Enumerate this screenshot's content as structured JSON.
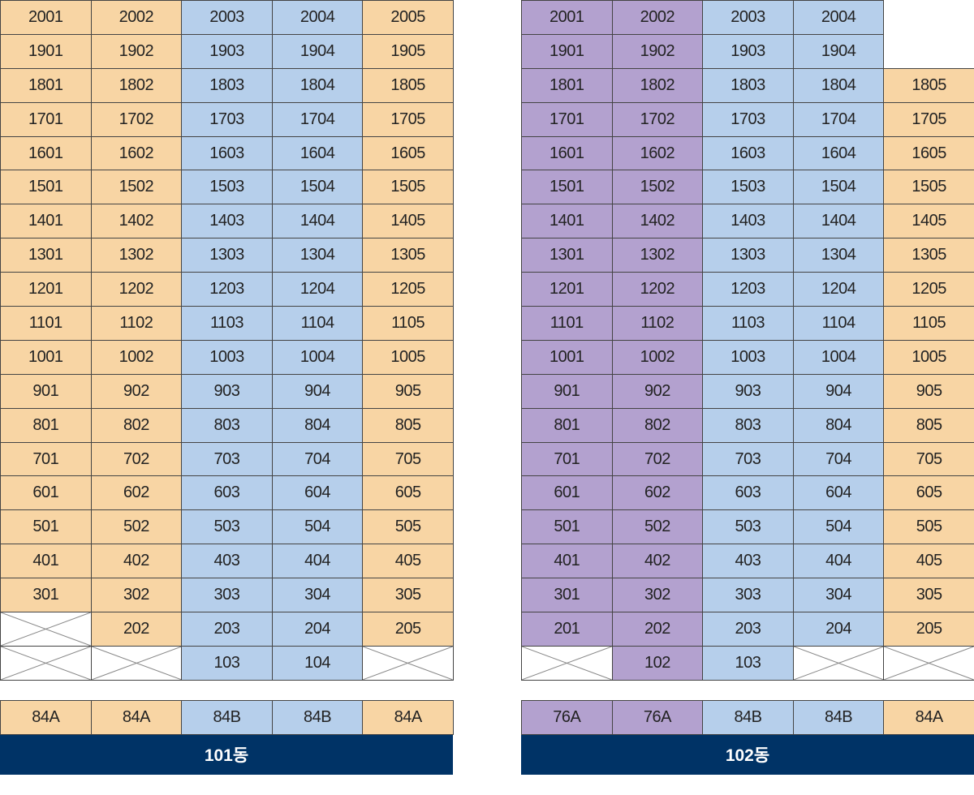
{
  "legend_colors": {
    "A": "#f8d5a4",
    "B": "#b6cfeb",
    "C": "#b3a1cf",
    "label_bg": "#003366"
  },
  "buildings": [
    {
      "name": "101동",
      "rows": [
        [
          [
            "2001",
            "A"
          ],
          [
            "2002",
            "A"
          ],
          [
            "2003",
            "B"
          ],
          [
            "2004",
            "B"
          ],
          [
            "2005",
            "A"
          ]
        ],
        [
          [
            "1901",
            "A"
          ],
          [
            "1902",
            "A"
          ],
          [
            "1903",
            "B"
          ],
          [
            "1904",
            "B"
          ],
          [
            "1905",
            "A"
          ]
        ],
        [
          [
            "1801",
            "A"
          ],
          [
            "1802",
            "A"
          ],
          [
            "1803",
            "B"
          ],
          [
            "1804",
            "B"
          ],
          [
            "1805",
            "A"
          ]
        ],
        [
          [
            "1701",
            "A"
          ],
          [
            "1702",
            "A"
          ],
          [
            "1703",
            "B"
          ],
          [
            "1704",
            "B"
          ],
          [
            "1705",
            "A"
          ]
        ],
        [
          [
            "1601",
            "A"
          ],
          [
            "1602",
            "A"
          ],
          [
            "1603",
            "B"
          ],
          [
            "1604",
            "B"
          ],
          [
            "1605",
            "A"
          ]
        ],
        [
          [
            "1501",
            "A"
          ],
          [
            "1502",
            "A"
          ],
          [
            "1503",
            "B"
          ],
          [
            "1504",
            "B"
          ],
          [
            "1505",
            "A"
          ]
        ],
        [
          [
            "1401",
            "A"
          ],
          [
            "1402",
            "A"
          ],
          [
            "1403",
            "B"
          ],
          [
            "1404",
            "B"
          ],
          [
            "1405",
            "A"
          ]
        ],
        [
          [
            "1301",
            "A"
          ],
          [
            "1302",
            "A"
          ],
          [
            "1303",
            "B"
          ],
          [
            "1304",
            "B"
          ],
          [
            "1305",
            "A"
          ]
        ],
        [
          [
            "1201",
            "A"
          ],
          [
            "1202",
            "A"
          ],
          [
            "1203",
            "B"
          ],
          [
            "1204",
            "B"
          ],
          [
            "1205",
            "A"
          ]
        ],
        [
          [
            "1101",
            "A"
          ],
          [
            "1102",
            "A"
          ],
          [
            "1103",
            "B"
          ],
          [
            "1104",
            "B"
          ],
          [
            "1105",
            "A"
          ]
        ],
        [
          [
            "1001",
            "A"
          ],
          [
            "1002",
            "A"
          ],
          [
            "1003",
            "B"
          ],
          [
            "1004",
            "B"
          ],
          [
            "1005",
            "A"
          ]
        ],
        [
          [
            "901",
            "A"
          ],
          [
            "902",
            "A"
          ],
          [
            "903",
            "B"
          ],
          [
            "904",
            "B"
          ],
          [
            "905",
            "A"
          ]
        ],
        [
          [
            "801",
            "A"
          ],
          [
            "802",
            "A"
          ],
          [
            "803",
            "B"
          ],
          [
            "804",
            "B"
          ],
          [
            "805",
            "A"
          ]
        ],
        [
          [
            "701",
            "A"
          ],
          [
            "702",
            "A"
          ],
          [
            "703",
            "B"
          ],
          [
            "704",
            "B"
          ],
          [
            "705",
            "A"
          ]
        ],
        [
          [
            "601",
            "A"
          ],
          [
            "602",
            "A"
          ],
          [
            "603",
            "B"
          ],
          [
            "604",
            "B"
          ],
          [
            "605",
            "A"
          ]
        ],
        [
          [
            "501",
            "A"
          ],
          [
            "502",
            "A"
          ],
          [
            "503",
            "B"
          ],
          [
            "504",
            "B"
          ],
          [
            "505",
            "A"
          ]
        ],
        [
          [
            "401",
            "A"
          ],
          [
            "402",
            "A"
          ],
          [
            "403",
            "B"
          ],
          [
            "404",
            "B"
          ],
          [
            "405",
            "A"
          ]
        ],
        [
          [
            "301",
            "A"
          ],
          [
            "302",
            "A"
          ],
          [
            "303",
            "B"
          ],
          [
            "304",
            "B"
          ],
          [
            "305",
            "A"
          ]
        ],
        [
          [
            "",
            "X"
          ],
          [
            "202",
            "A"
          ],
          [
            "203",
            "B"
          ],
          [
            "204",
            "B"
          ],
          [
            "205",
            "A"
          ]
        ],
        [
          [
            "",
            "X"
          ],
          [
            "",
            "X"
          ],
          [
            "103",
            "B"
          ],
          [
            "104",
            "B"
          ],
          [
            "",
            "X"
          ]
        ]
      ],
      "types": [
        [
          "84A",
          "A"
        ],
        [
          "84A",
          "A"
        ],
        [
          "84B",
          "B"
        ],
        [
          "84B",
          "B"
        ],
        [
          "84A",
          "A"
        ]
      ]
    },
    {
      "name": "102동",
      "rows": [
        [
          [
            "2001",
            "C"
          ],
          [
            "2002",
            "C"
          ],
          [
            "2003",
            "B"
          ],
          [
            "2004",
            "B"
          ],
          [
            "",
            "E"
          ]
        ],
        [
          [
            "1901",
            "C"
          ],
          [
            "1902",
            "C"
          ],
          [
            "1903",
            "B"
          ],
          [
            "1904",
            "B"
          ],
          [
            "",
            "E"
          ]
        ],
        [
          [
            "1801",
            "C"
          ],
          [
            "1802",
            "C"
          ],
          [
            "1803",
            "B"
          ],
          [
            "1804",
            "B"
          ],
          [
            "1805",
            "A"
          ]
        ],
        [
          [
            "1701",
            "C"
          ],
          [
            "1702",
            "C"
          ],
          [
            "1703",
            "B"
          ],
          [
            "1704",
            "B"
          ],
          [
            "1705",
            "A"
          ]
        ],
        [
          [
            "1601",
            "C"
          ],
          [
            "1602",
            "C"
          ],
          [
            "1603",
            "B"
          ],
          [
            "1604",
            "B"
          ],
          [
            "1605",
            "A"
          ]
        ],
        [
          [
            "1501",
            "C"
          ],
          [
            "1502",
            "C"
          ],
          [
            "1503",
            "B"
          ],
          [
            "1504",
            "B"
          ],
          [
            "1505",
            "A"
          ]
        ],
        [
          [
            "1401",
            "C"
          ],
          [
            "1402",
            "C"
          ],
          [
            "1403",
            "B"
          ],
          [
            "1404",
            "B"
          ],
          [
            "1405",
            "A"
          ]
        ],
        [
          [
            "1301",
            "C"
          ],
          [
            "1302",
            "C"
          ],
          [
            "1303",
            "B"
          ],
          [
            "1304",
            "B"
          ],
          [
            "1305",
            "A"
          ]
        ],
        [
          [
            "1201",
            "C"
          ],
          [
            "1202",
            "C"
          ],
          [
            "1203",
            "B"
          ],
          [
            "1204",
            "B"
          ],
          [
            "1205",
            "A"
          ]
        ],
        [
          [
            "1101",
            "C"
          ],
          [
            "1102",
            "C"
          ],
          [
            "1103",
            "B"
          ],
          [
            "1104",
            "B"
          ],
          [
            "1105",
            "A"
          ]
        ],
        [
          [
            "1001",
            "C"
          ],
          [
            "1002",
            "C"
          ],
          [
            "1003",
            "B"
          ],
          [
            "1004",
            "B"
          ],
          [
            "1005",
            "A"
          ]
        ],
        [
          [
            "901",
            "C"
          ],
          [
            "902",
            "C"
          ],
          [
            "903",
            "B"
          ],
          [
            "904",
            "B"
          ],
          [
            "905",
            "A"
          ]
        ],
        [
          [
            "801",
            "C"
          ],
          [
            "802",
            "C"
          ],
          [
            "803",
            "B"
          ],
          [
            "804",
            "B"
          ],
          [
            "805",
            "A"
          ]
        ],
        [
          [
            "701",
            "C"
          ],
          [
            "702",
            "C"
          ],
          [
            "703",
            "B"
          ],
          [
            "704",
            "B"
          ],
          [
            "705",
            "A"
          ]
        ],
        [
          [
            "601",
            "C"
          ],
          [
            "602",
            "C"
          ],
          [
            "603",
            "B"
          ],
          [
            "604",
            "B"
          ],
          [
            "605",
            "A"
          ]
        ],
        [
          [
            "501",
            "C"
          ],
          [
            "502",
            "C"
          ],
          [
            "503",
            "B"
          ],
          [
            "504",
            "B"
          ],
          [
            "505",
            "A"
          ]
        ],
        [
          [
            "401",
            "C"
          ],
          [
            "402",
            "C"
          ],
          [
            "403",
            "B"
          ],
          [
            "404",
            "B"
          ],
          [
            "405",
            "A"
          ]
        ],
        [
          [
            "301",
            "C"
          ],
          [
            "302",
            "C"
          ],
          [
            "303",
            "B"
          ],
          [
            "304",
            "B"
          ],
          [
            "305",
            "A"
          ]
        ],
        [
          [
            "201",
            "C"
          ],
          [
            "202",
            "C"
          ],
          [
            "203",
            "B"
          ],
          [
            "204",
            "B"
          ],
          [
            "205",
            "A"
          ]
        ],
        [
          [
            "",
            "X"
          ],
          [
            "102",
            "C"
          ],
          [
            "103",
            "B"
          ],
          [
            "",
            "X"
          ],
          [
            "",
            "X"
          ]
        ]
      ],
      "types": [
        [
          "76A",
          "C"
        ],
        [
          "76A",
          "C"
        ],
        [
          "84B",
          "B"
        ],
        [
          "84B",
          "B"
        ],
        [
          "84A",
          "A"
        ]
      ]
    }
  ]
}
